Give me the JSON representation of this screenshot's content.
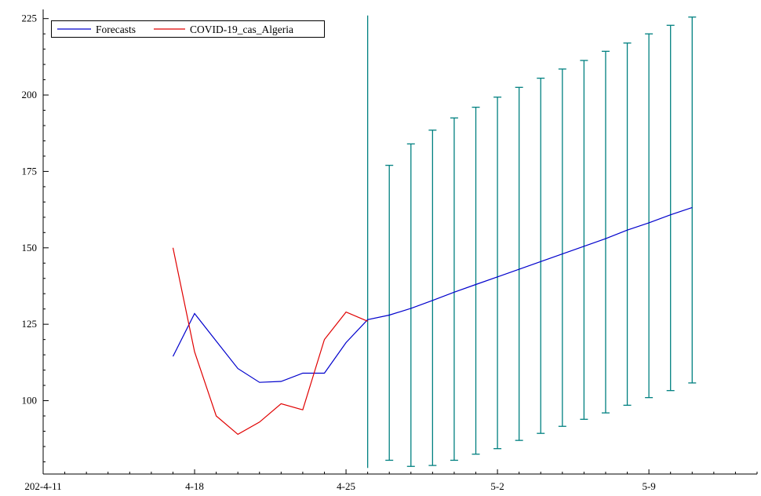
{
  "chart_data": {
    "type": "line",
    "x_tick_labels": [
      {
        "day": 0,
        "label": "202-4-11"
      },
      {
        "day": 7,
        "label": "4-18"
      },
      {
        "day": 14,
        "label": "4-25"
      },
      {
        "day": 21,
        "label": "5-2"
      },
      {
        "day": 28,
        "label": "5-9"
      }
    ],
    "y_ticks": [
      100,
      125,
      150,
      175,
      200,
      225
    ],
    "xlim": [
      0,
      33
    ],
    "ylim": [
      76,
      228
    ],
    "legend": {
      "placement": "top-left"
    },
    "series": [
      {
        "name": "Forecasts",
        "color": "#0000cc",
        "x": [
          6,
          7,
          8,
          9,
          10,
          11,
          12,
          13,
          14,
          15,
          16,
          17,
          18,
          19,
          20,
          21,
          22,
          23,
          24,
          25,
          26,
          27,
          28,
          29,
          30
        ],
        "y": [
          114.5,
          128.5,
          119.5,
          110.5,
          106,
          106.3,
          109,
          109,
          119,
          126.5,
          128,
          130.2,
          132.8,
          135.5,
          138,
          140.5,
          143,
          145.5,
          148,
          150.5,
          153,
          155.8,
          158.2,
          160.8,
          163.2
        ]
      },
      {
        "name": "COVID-19_cas_Algeria",
        "color": "#e00000",
        "x": [
          6,
          7,
          8,
          9,
          10,
          11,
          12,
          13,
          14,
          15
        ],
        "y": [
          150,
          116,
          95,
          89,
          93,
          99,
          97,
          120,
          129,
          126
        ]
      }
    ],
    "error_bars": {
      "color": "#008080",
      "x": [
        15,
        16,
        17,
        18,
        19,
        20,
        21,
        22,
        23,
        24,
        25,
        26,
        27,
        28,
        29,
        30
      ],
      "low": [
        78,
        80.5,
        78.5,
        78.8,
        80.5,
        82.5,
        84.3,
        87,
        89.3,
        91.6,
        93.9,
        96,
        98.5,
        101,
        103.3,
        105.8
      ],
      "high": [
        226,
        177,
        184,
        188.5,
        192.5,
        196,
        199.3,
        202.5,
        205.5,
        208.5,
        211.3,
        214.3,
        217,
        220,
        222.8,
        225.5
      ]
    }
  }
}
